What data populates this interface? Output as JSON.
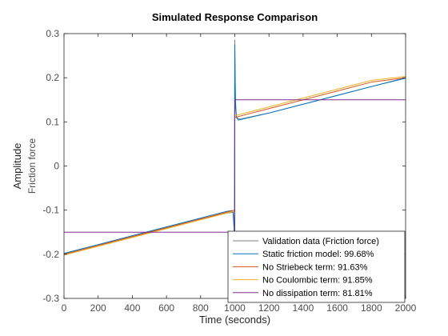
{
  "chart_data": {
    "type": "line",
    "title": "Simulated Response Comparison",
    "xlabel": "Time (seconds)",
    "ylabel": "Amplitude",
    "channel_label": "Friction force",
    "xlim": [
      0,
      2000
    ],
    "ylim": [
      -0.3,
      0.3
    ],
    "xticks": [
      0,
      200,
      400,
      600,
      800,
      1000,
      1200,
      1400,
      1600,
      1800,
      2000
    ],
    "yticks": [
      -0.3,
      -0.2,
      -0.1,
      0,
      0.1,
      0.2,
      0.3
    ],
    "grid": false,
    "legend_position": "bottom-right",
    "series": [
      {
        "name": "Validation data (Friction force)",
        "color": "#808080",
        "x": [
          0,
          200,
          400,
          600,
          800,
          950,
          990,
          998,
          1000,
          1002,
          1010,
          1030,
          1200,
          1400,
          1600,
          1800,
          2000
        ],
        "y": [
          -0.2,
          -0.18,
          -0.16,
          -0.14,
          -0.12,
          -0.107,
          -0.105,
          -0.16,
          0.285,
          0.16,
          0.11,
          0.106,
          0.12,
          0.14,
          0.16,
          0.18,
          0.2
        ]
      },
      {
        "name": "Static friction model: 99.68%",
        "color": "#0072BD",
        "x": [
          0,
          200,
          400,
          600,
          800,
          950,
          980,
          990,
          996,
          998,
          1000,
          1002,
          1005,
          1010,
          1020,
          1030,
          1200,
          1400,
          1600,
          1800,
          2000
        ],
        "y": [
          -0.198,
          -0.178,
          -0.158,
          -0.138,
          -0.118,
          -0.103,
          -0.101,
          -0.103,
          -0.14,
          -0.165,
          0.275,
          0.2,
          0.13,
          0.11,
          0.104,
          0.105,
          0.12,
          0.14,
          0.16,
          0.18,
          0.199
        ]
      },
      {
        "name": "No Striebeck term: 91.63%",
        "color": "#D95319",
        "x": [
          0,
          200,
          400,
          600,
          800,
          1000,
          1000,
          1200,
          1400,
          1600,
          1800,
          2000
        ],
        "y": [
          -0.2,
          -0.18,
          -0.16,
          -0.14,
          -0.12,
          -0.1,
          0.11,
          0.13,
          0.15,
          0.17,
          0.19,
          0.2
        ]
      },
      {
        "name": "No Coulombic term: 91.85%",
        "color": "#EDB120",
        "x": [
          0,
          200,
          400,
          600,
          800,
          1000,
          1000,
          1200,
          1400,
          1600,
          1800,
          2000
        ],
        "y": [
          -0.202,
          -0.182,
          -0.162,
          -0.142,
          -0.122,
          -0.102,
          0.114,
          0.134,
          0.154,
          0.174,
          0.194,
          0.203
        ]
      },
      {
        "name": "No dissipation term: 81.81%",
        "color": "#7E2F8E",
        "x": [
          0,
          998,
          1000,
          1000,
          2000
        ],
        "y": [
          -0.15,
          -0.15,
          -0.3,
          0.15,
          0.15
        ]
      }
    ]
  }
}
